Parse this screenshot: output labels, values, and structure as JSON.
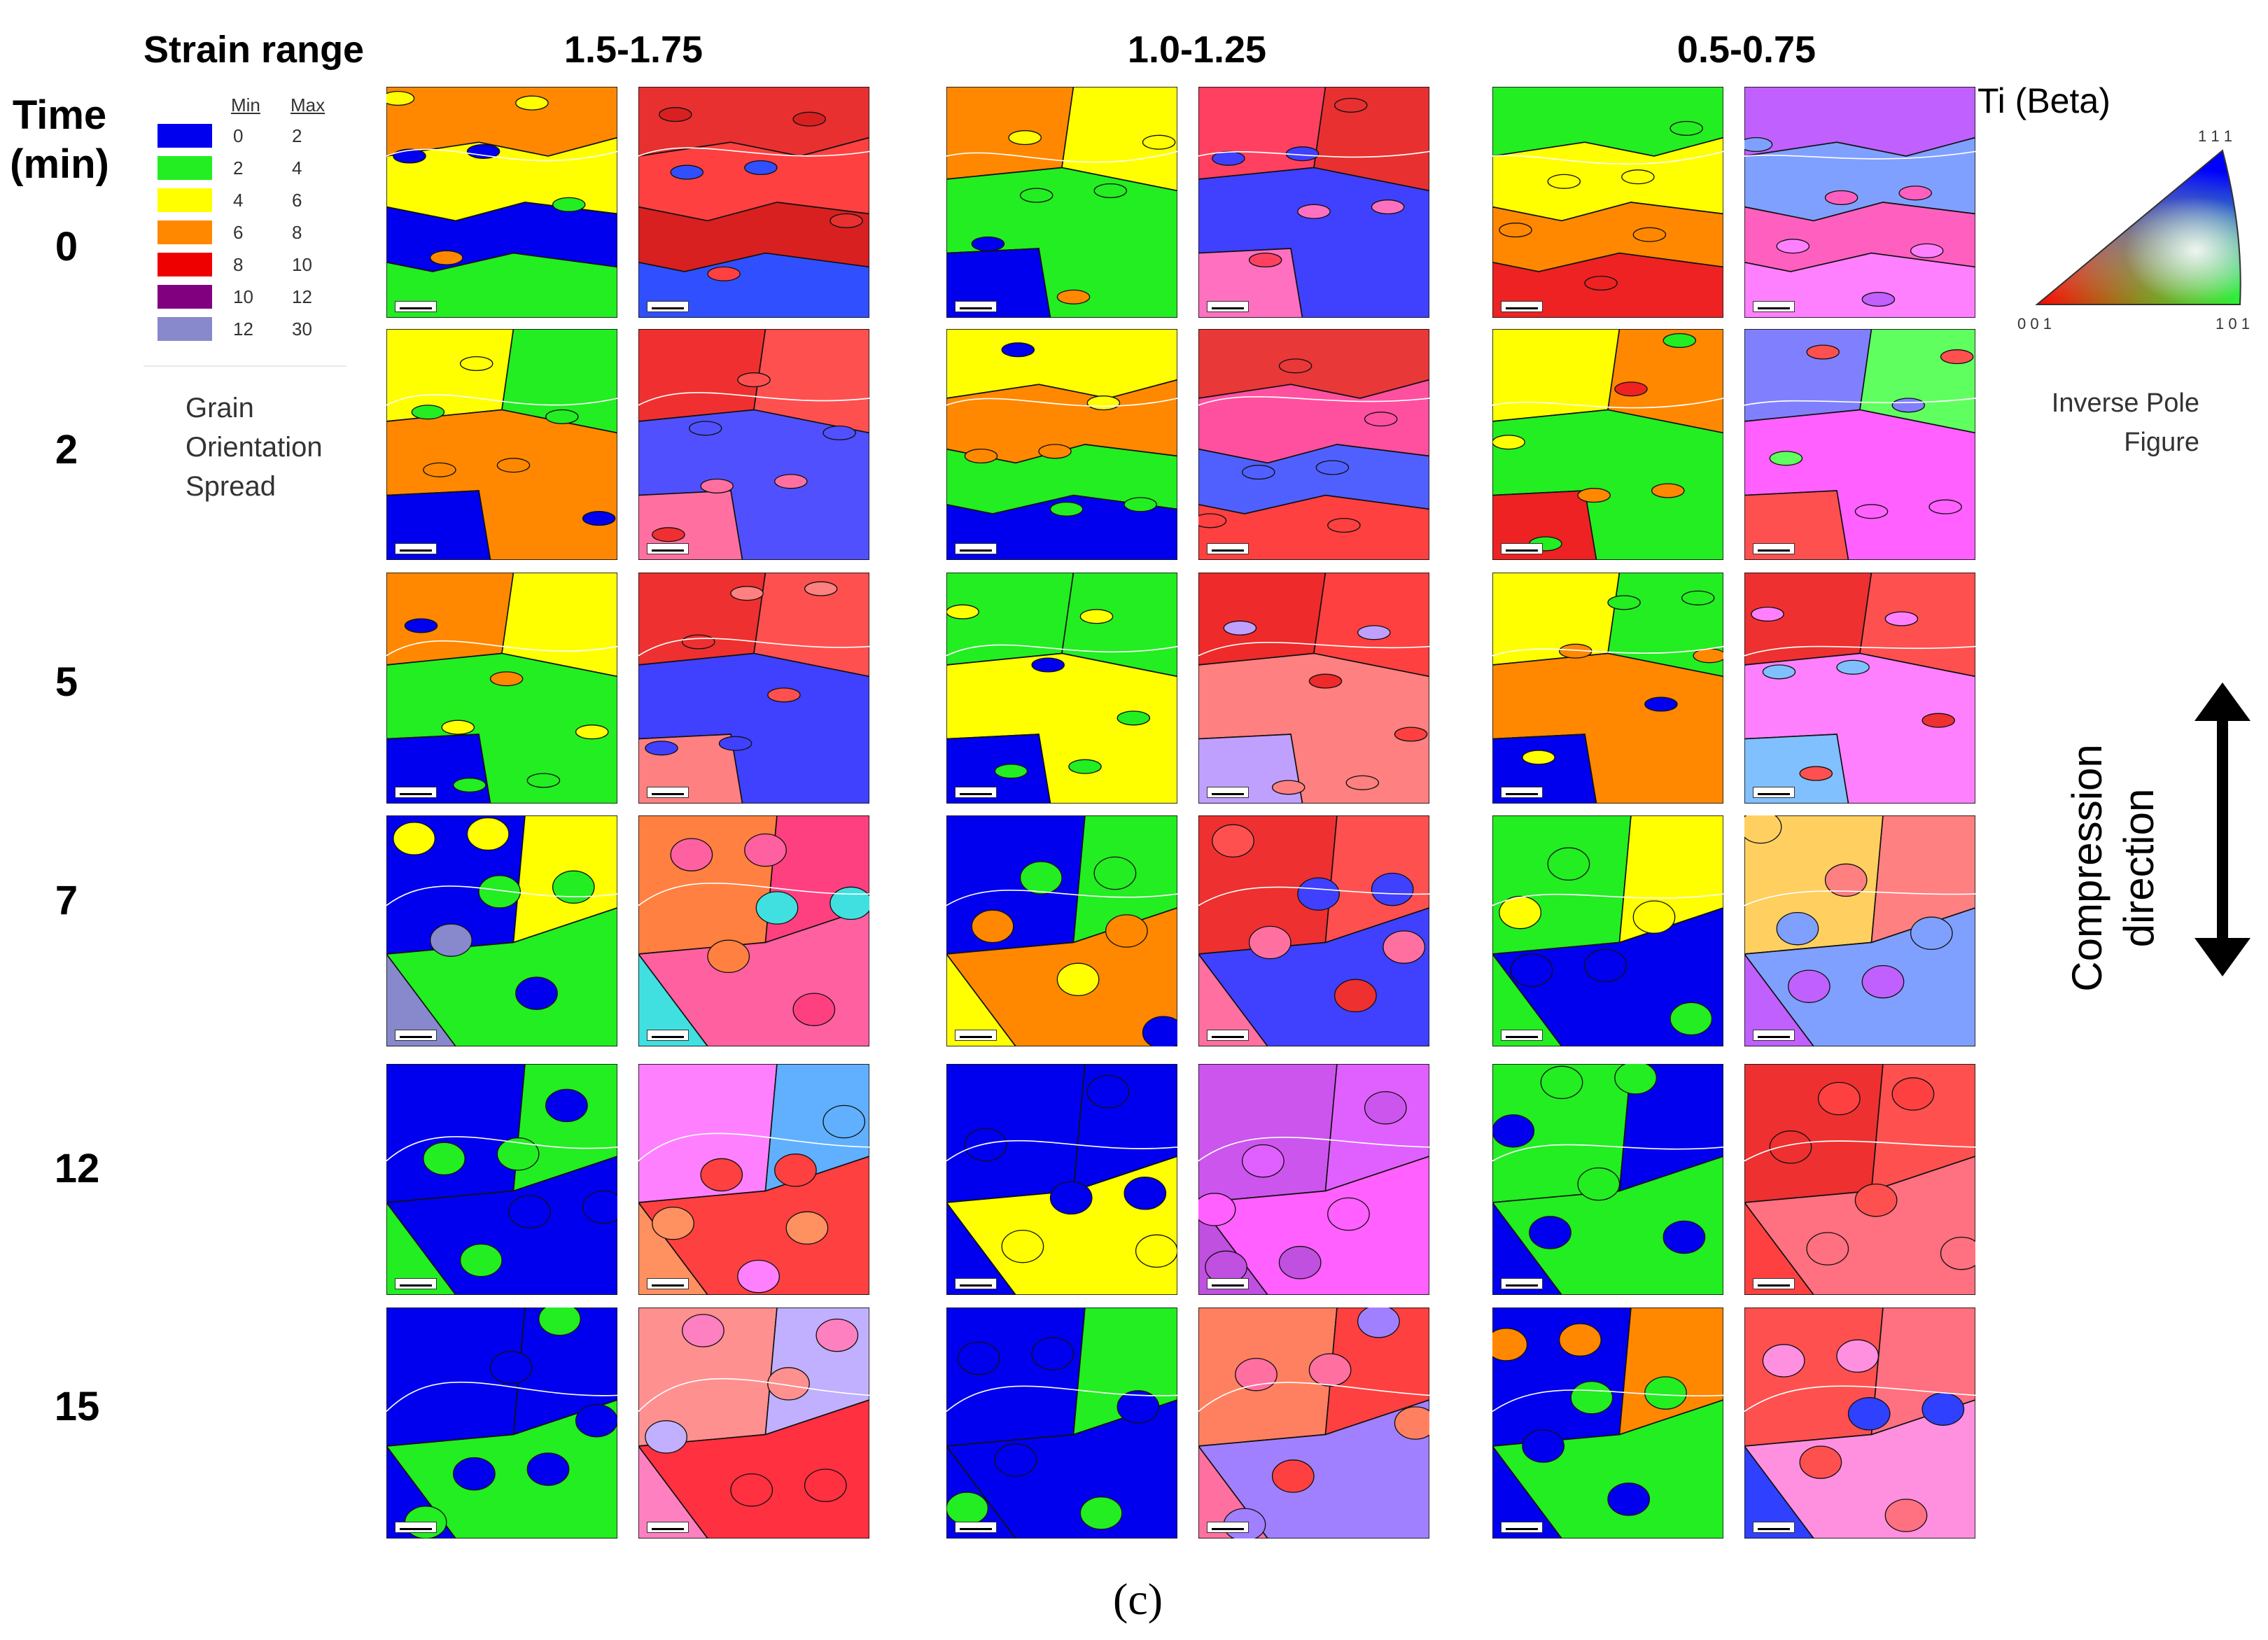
{
  "header": {
    "strain_label": "Strain range",
    "time_label_line1": "Time",
    "time_label_line2": "(min)"
  },
  "columns": [
    "1.5-1.75",
    "1.0-1.25",
    "0.5-0.75"
  ],
  "times": [
    "0",
    "2",
    "5",
    "7",
    "12",
    "15"
  ],
  "legend": {
    "min_label": "Min",
    "max_label": "Max",
    "rows": [
      {
        "min": "0",
        "max": "2",
        "color": "#0000ee"
      },
      {
        "min": "2",
        "max": "4",
        "color": "#22ee22"
      },
      {
        "min": "4",
        "max": "6",
        "color": "#ffff00"
      },
      {
        "min": "6",
        "max": "8",
        "color": "#ff8800"
      },
      {
        "min": "8",
        "max": "10",
        "color": "#ee0000"
      },
      {
        "min": "10",
        "max": "12",
        "color": "#800080"
      },
      {
        "min": "12",
        "max": "30",
        "color": "#8888cc"
      }
    ],
    "caption_lines": [
      "Grain",
      "Orientation",
      "Spread"
    ]
  },
  "ipf": {
    "title": "Ti (Beta)",
    "corner_111": "1 1 1",
    "corner_001": "0 0 1",
    "corner_101": "1 0 1",
    "sub_line1": "Inverse Pole",
    "sub_line2": "Figure"
  },
  "compression": {
    "line1": "Compression",
    "line2": "direction"
  },
  "caption": "(c)",
  "palette": {
    "blue": "#0000ee",
    "green": "#22ee22",
    "yellow": "#ffff00",
    "orange": "#ff8800",
    "red": "#ee2222",
    "purple": "#800080",
    "lavender": "#8888cc"
  },
  "panels": [
    {
      "gos": [
        "orange",
        "yellow",
        "blue",
        "green"
      ],
      "ipf": [
        "#e83030",
        "#ff4040",
        "#d82020",
        "#3050ff"
      ]
    },
    {
      "gos": [
        "orange",
        "yellow",
        "green",
        "blue"
      ],
      "ipf": [
        "#ff4060",
        "#e83030",
        "#4040ff",
        "#ff70c0"
      ]
    },
    {
      "gos": [
        "green",
        "yellow",
        "orange",
        "red"
      ],
      "ipf": [
        "#c060ff",
        "#80a0ff",
        "#ff60c0",
        "#ff80ff"
      ]
    },
    {
      "gos": [
        "yellow",
        "green",
        "orange",
        "blue"
      ],
      "ipf": [
        "#f03030",
        "#ff5050",
        "#5050ff",
        "#ff70a0"
      ]
    },
    {
      "gos": [
        "yellow",
        "orange",
        "green",
        "blue"
      ],
      "ipf": [
        "#e83838",
        "#ff50a0",
        "#5060ff",
        "#ff4040"
      ]
    },
    {
      "gos": [
        "yellow",
        "orange",
        "green",
        "red"
      ],
      "ipf": [
        "#8080ff",
        "#60ff60",
        "#ff60ff",
        "#ff5050"
      ]
    },
    {
      "gos": [
        "orange",
        "yellow",
        "green",
        "blue"
      ],
      "ipf": [
        "#ee3030",
        "#ff5050",
        "#4040ff",
        "#ff8080"
      ]
    },
    {
      "gos": [
        "green",
        "green",
        "yellow",
        "blue"
      ],
      "ipf": [
        "#ee2a2a",
        "#ff4040",
        "#ff8080",
        "#c0a0ff"
      ]
    },
    {
      "gos": [
        "yellow",
        "green",
        "orange",
        "blue"
      ],
      "ipf": [
        "#ee3030",
        "#ff5050",
        "#ff80ff",
        "#80c0ff"
      ]
    },
    {
      "gos": [
        "blue",
        "yellow",
        "green",
        "lavender"
      ],
      "ipf": [
        "#ff8040",
        "#ff4080",
        "#ff60a0",
        "#40e0e0"
      ]
    },
    {
      "gos": [
        "blue",
        "green",
        "orange",
        "yellow"
      ],
      "ipf": [
        "#ee3030",
        "#ff5050",
        "#4040ff",
        "#ff70a0"
      ]
    },
    {
      "gos": [
        "green",
        "yellow",
        "blue",
        "green"
      ],
      "ipf": [
        "#ffd060",
        "#ff8080",
        "#80a0ff",
        "#c060ff"
      ]
    },
    {
      "gos": [
        "blue",
        "green",
        "blue",
        "green"
      ],
      "ipf": [
        "#ff80ff",
        "#60b0ff",
        "#ff4040",
        "#ff9060"
      ]
    },
    {
      "gos": [
        "blue",
        "blue",
        "yellow",
        "blue"
      ],
      "ipf": [
        "#cc55ee",
        "#e060ff",
        "#ff60ff",
        "#c050e0"
      ]
    },
    {
      "gos": [
        "green",
        "blue",
        "green",
        "blue"
      ],
      "ipf": [
        "#ee3030",
        "#ff5050",
        "#ff7080",
        "#ff4040"
      ]
    },
    {
      "gos": [
        "blue",
        "blue",
        "green",
        "blue"
      ],
      "ipf": [
        "#ff9090",
        "#c0b0ff",
        "#ff3040",
        "#ff80c0"
      ]
    },
    {
      "gos": [
        "blue",
        "green",
        "blue",
        "blue"
      ],
      "ipf": [
        "#ff8060",
        "#ff4040",
        "#a080ff",
        "#ff70a0"
      ]
    },
    {
      "gos": [
        "blue",
        "orange",
        "green",
        "blue"
      ],
      "ipf": [
        "#ff5050",
        "#ff7080",
        "#ff90e0",
        "#3040ff"
      ]
    }
  ]
}
